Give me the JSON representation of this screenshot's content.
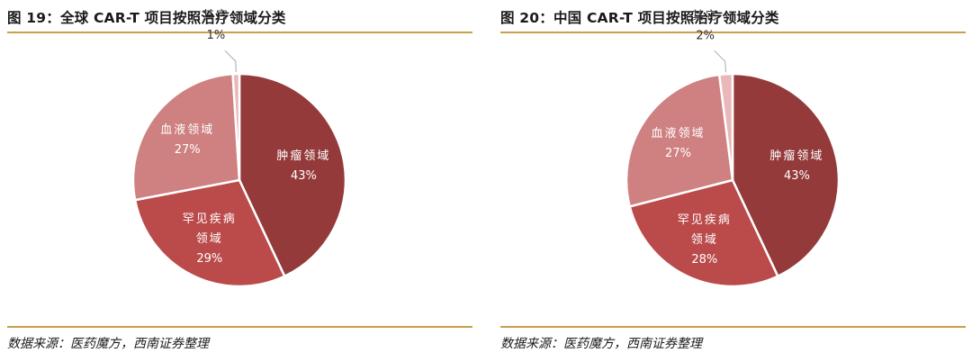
{
  "chart_data": [
    {
      "type": "pie",
      "title": "图 19：全球 CAR-T 项目按照治疗领域分类",
      "source": "数据来源：医药魔方，西南证券整理",
      "slices": [
        {
          "label": "肿瘤领域",
          "value": 43,
          "display": "43%",
          "color": "#943a3a"
        },
        {
          "label": "罕见疾病领域",
          "value": 29,
          "display": "29%",
          "color": "#bb4b4b"
        },
        {
          "label": "血液领域",
          "value": 27,
          "display": "27%",
          "color": "#cf8080"
        },
        {
          "label": "其它",
          "value": 1,
          "display": "1%",
          "color": "#eab8b8"
        }
      ]
    },
    {
      "type": "pie",
      "title": "图 20：中国 CAR-T 项目按照治疗领域分类",
      "source": "数据来源：医药魔方，西南证券整理",
      "slices": [
        {
          "label": "肿瘤领域",
          "value": 43,
          "display": "43%",
          "color": "#943a3a"
        },
        {
          "label": "罕见疾病领域",
          "value": 28,
          "display": "28%",
          "color": "#bb4b4b"
        },
        {
          "label": "血液领域",
          "value": 27,
          "display": "27%",
          "color": "#cf8080"
        },
        {
          "label": "其它",
          "value": 2,
          "display": "2%",
          "color": "#eab8b8"
        }
      ]
    }
  ]
}
